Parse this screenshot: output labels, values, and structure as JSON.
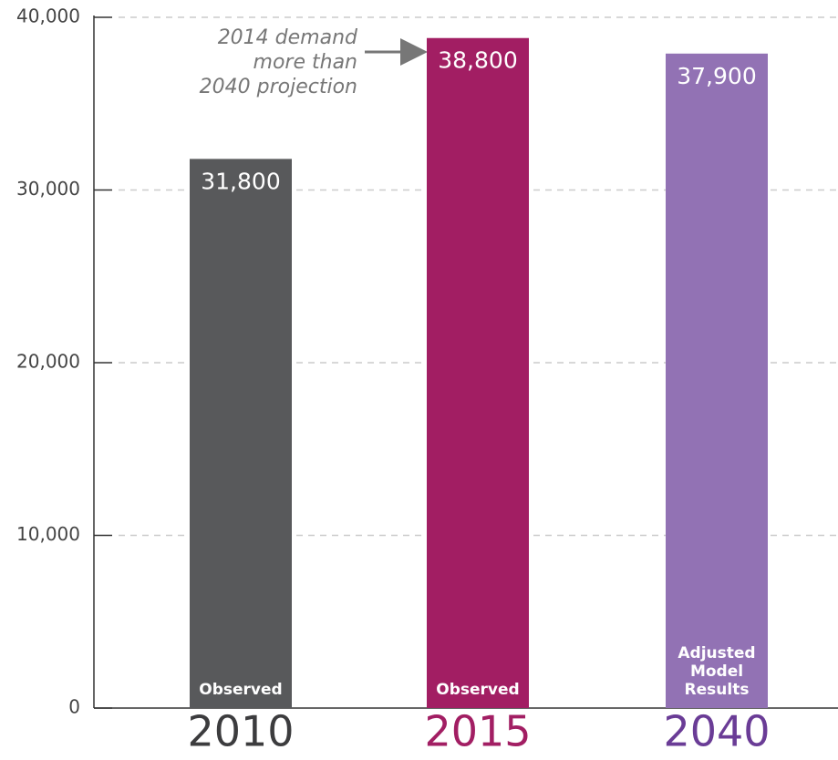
{
  "chart_data": {
    "type": "bar",
    "categories": [
      "2010",
      "2015",
      "2040"
    ],
    "values": [
      31800,
      38800,
      37900
    ],
    "value_labels": [
      "31,800",
      "38,800",
      "37,900"
    ],
    "colors": [
      "#58595b",
      "#a21e63",
      "#9272b4"
    ],
    "category_colors": [
      "#3c3c3e",
      "#a21e63",
      "#6a3c96"
    ],
    "bar_labels": [
      [
        "Observed"
      ],
      [
        "Observed"
      ],
      [
        "Adjusted",
        "Model",
        "Results"
      ]
    ],
    "annotation": [
      "2014 demand",
      "more than",
      "2040 projection"
    ],
    "ylim": [
      0,
      40000
    ],
    "yticks": [
      0,
      {
        "value": 10000,
        "label": "10,000"
      },
      {
        "value": 20000,
        "label": "20,000"
      },
      {
        "value": 30000,
        "label": "30,000"
      },
      {
        "value": 40000,
        "label": "40,000"
      }
    ],
    "grid": true
  }
}
